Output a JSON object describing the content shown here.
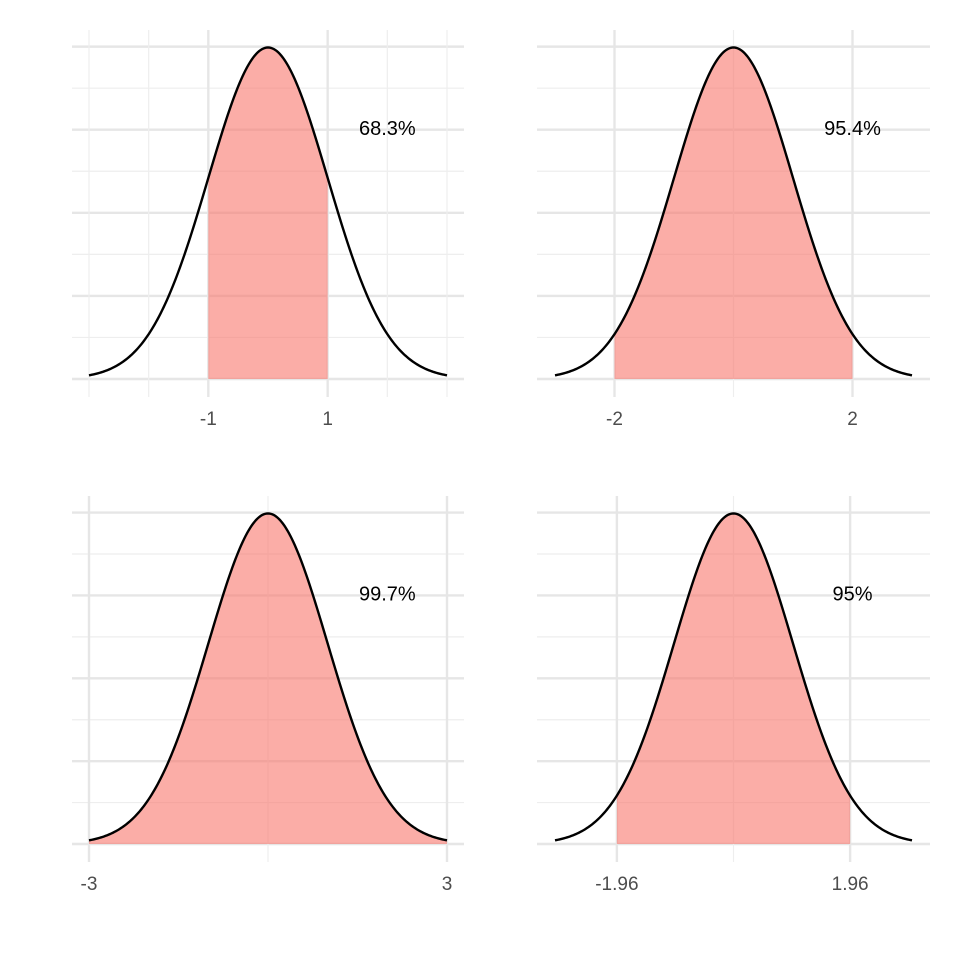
{
  "colors": {
    "shade": "#f8766d",
    "curve": "#000000",
    "grid": "#e6e6e6"
  },
  "chart_data": [
    {
      "type": "area",
      "distribution": "standard normal",
      "xlim": [
        -3,
        3
      ],
      "shade_from": -1,
      "shade_to": 1,
      "annotation": "68.3%",
      "x_ticks": [
        -1,
        1
      ],
      "x_tick_labels": [
        "-1",
        "1"
      ],
      "minor_grid_x": [
        -3,
        -2,
        2,
        3
      ]
    },
    {
      "type": "area",
      "distribution": "standard normal",
      "xlim": [
        -3,
        3
      ],
      "shade_from": -2,
      "shade_to": 2,
      "annotation": "95.4%",
      "x_ticks": [
        -2,
        2
      ],
      "x_tick_labels": [
        "-2",
        "2"
      ],
      "minor_grid_x": [
        0
      ]
    },
    {
      "type": "area",
      "distribution": "standard normal",
      "xlim": [
        -3,
        3
      ],
      "shade_from": -3,
      "shade_to": 3,
      "annotation": "99.7%",
      "x_ticks": [
        -3,
        3
      ],
      "x_tick_labels": [
        "-3",
        "3"
      ],
      "minor_grid_x": [
        0
      ]
    },
    {
      "type": "area",
      "distribution": "standard normal",
      "xlim": [
        -3,
        3
      ],
      "shade_from": -1.96,
      "shade_to": 1.96,
      "annotation": "95%",
      "x_ticks": [
        -1.96,
        1.96
      ],
      "x_tick_labels": [
        "-1.96",
        "1.96"
      ],
      "minor_grid_x": [
        0
      ]
    }
  ]
}
